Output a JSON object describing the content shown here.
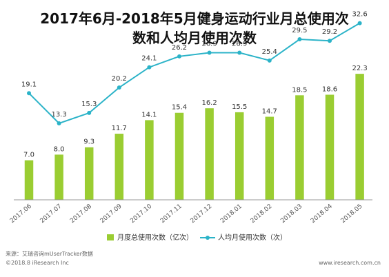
{
  "title_line1": "2017年6月-2018年5月健身运动行业月总使用次",
  "title_line2": "数和人均月使用次数",
  "source": "来源：艾瑞咨询mUserTracker数据",
  "copyright": "©2018.8 iResearch Inc",
  "website": "www.iresearch.com.cn",
  "colors": {
    "bar": "#9ACD32",
    "line": "#2BB3C8",
    "axis": "#999999"
  },
  "chart_data": {
    "type": "bar+line",
    "categories": [
      "2017.06",
      "2017.07",
      "2017.08",
      "2017.09",
      "2017.10",
      "2017.11",
      "2017.12",
      "2018.01",
      "2018.02",
      "2018.03",
      "2018.04",
      "2018.05"
    ],
    "series": [
      {
        "name": "月度总使用次数（亿次）",
        "type": "bar",
        "values": [
          7.0,
          8.0,
          9.3,
          11.7,
          14.1,
          15.4,
          16.2,
          15.5,
          14.7,
          18.5,
          18.6,
          22.3
        ]
      },
      {
        "name": "人均月使用次数（次）",
        "type": "line",
        "values": [
          19.1,
          13.3,
          15.3,
          20.2,
          24.1,
          26.2,
          26.9,
          26.9,
          25.4,
          29.5,
          29.2,
          32.6
        ]
      }
    ],
    "value_labels": {
      "bars": [
        "7.0",
        "8.0",
        "9.3",
        "11.7",
        "14.1",
        "15.4",
        "16.2",
        "15.5",
        "14.7",
        "18.5",
        "18.6",
        "22.3"
      ],
      "line": [
        "19.1",
        "13.3",
        "15.3",
        "20.2",
        "24.1",
        "26.2",
        "26.9",
        "26.9",
        "25.4",
        "29.5",
        "29.2",
        "32.6"
      ]
    },
    "legend_position": "bottom",
    "grid": false
  }
}
